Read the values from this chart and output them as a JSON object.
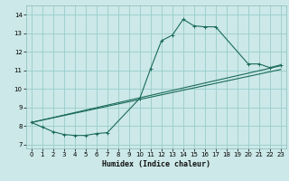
{
  "xlabel": "Humidex (Indice chaleur)",
  "bg_color": "#cce8e8",
  "grid_color": "#99cccc",
  "line_color": "#1a6b5a",
  "xlim": [
    -0.5,
    23.5
  ],
  "ylim": [
    6.8,
    14.5
  ],
  "xticks": [
    0,
    1,
    2,
    3,
    4,
    5,
    6,
    7,
    8,
    9,
    10,
    11,
    12,
    13,
    14,
    15,
    16,
    17,
    18,
    19,
    20,
    21,
    22,
    23
  ],
  "yticks": [
    7,
    8,
    9,
    10,
    11,
    12,
    13,
    14
  ],
  "series1_x": [
    0,
    1,
    2,
    3,
    4,
    5,
    6,
    7,
    10,
    11,
    12,
    13,
    14,
    15,
    16,
    17,
    20,
    21,
    22,
    23
  ],
  "series1_y": [
    8.2,
    7.95,
    7.7,
    7.55,
    7.5,
    7.5,
    7.6,
    7.65,
    9.5,
    11.1,
    12.6,
    12.9,
    13.75,
    13.4,
    13.35,
    13.35,
    11.35,
    11.35,
    11.15,
    11.3
  ],
  "series2_x": [
    0,
    23
  ],
  "series2_y": [
    8.2,
    11.25
  ],
  "series3_x": [
    0,
    23
  ],
  "series3_y": [
    8.2,
    11.05
  ]
}
